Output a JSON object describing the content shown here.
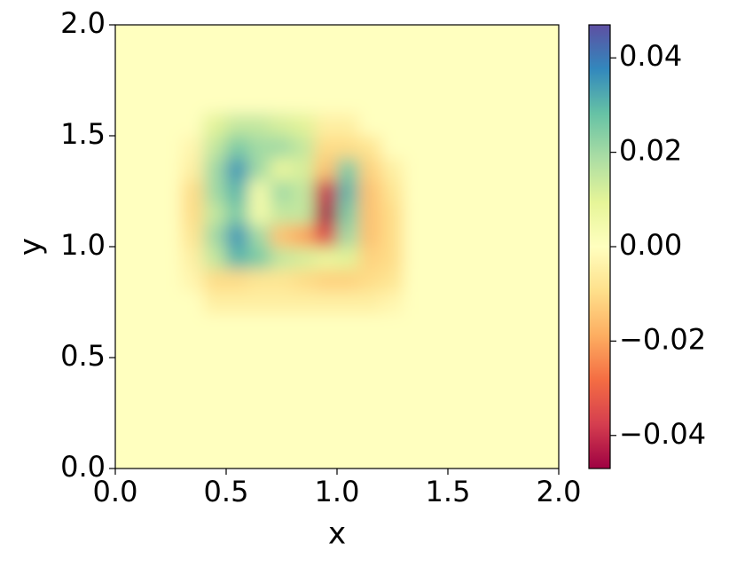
{
  "chart_data": {
    "type": "heatmap",
    "xlabel": "x",
    "ylabel": "y",
    "xlim": [
      0,
      2
    ],
    "ylim": [
      0,
      2
    ],
    "xticks": [
      {
        "value": 0,
        "label": "0.0"
      },
      {
        "value": 0.5,
        "label": "0.5"
      },
      {
        "value": 1,
        "label": "1.0"
      },
      {
        "value": 1.5,
        "label": "1.5"
      },
      {
        "value": 2,
        "label": "2.0"
      }
    ],
    "yticks": [
      {
        "value": 0,
        "label": "0.0"
      },
      {
        "value": 0.5,
        "label": "0.5"
      },
      {
        "value": 1,
        "label": "1.0"
      },
      {
        "value": 1.5,
        "label": "1.5"
      },
      {
        "value": 2,
        "label": "2.0"
      }
    ],
    "colormap": "Spectral",
    "clim": [
      -0.047,
      0.047
    ],
    "cticks": [
      {
        "value": -0.04,
        "label": "−0.04"
      },
      {
        "value": -0.02,
        "label": "−0.02"
      },
      {
        "value": 0,
        "label": "0.00"
      },
      0.02,
      0.04
    ],
    "x": [
      0.05,
      0.15,
      0.25,
      0.35,
      0.45,
      0.55,
      0.65,
      0.75,
      0.85,
      0.95,
      1.05,
      1.15,
      1.25,
      1.35,
      1.45,
      1.55,
      1.65,
      1.75,
      1.85,
      1.95
    ],
    "y": [
      0.05,
      0.15,
      0.25,
      0.35,
      0.45,
      0.55,
      0.65,
      0.75,
      0.85,
      0.95,
      1.05,
      1.15,
      1.25,
      1.35,
      1.45,
      1.55,
      1.65,
      1.75,
      1.85,
      1.95
    ],
    "z": [
      [
        0,
        0,
        0,
        0,
        0,
        0,
        0,
        0,
        0,
        0,
        0,
        0,
        0,
        0,
        0,
        0,
        0,
        0,
        0,
        0
      ],
      [
        0,
        0,
        0,
        0,
        0,
        0,
        0,
        0,
        0,
        0,
        0,
        0,
        0,
        0,
        0,
        0,
        0,
        0,
        0,
        0
      ],
      [
        0,
        0,
        0,
        0,
        0,
        0,
        0,
        0,
        0,
        0,
        0,
        0,
        0,
        0,
        0,
        0,
        0,
        0,
        0,
        0
      ],
      [
        0,
        0,
        0,
        0,
        0,
        0,
        0,
        0,
        0,
        0,
        0,
        0,
        0,
        0,
        0,
        0,
        0,
        0,
        0,
        0
      ],
      [
        0,
        0,
        0,
        0,
        0,
        0,
        0,
        0,
        0,
        0,
        0,
        0,
        0,
        0,
        0,
        0,
        0,
        0,
        0,
        0
      ],
      [
        0,
        0,
        0,
        0,
        0,
        0,
        0,
        0,
        0,
        0,
        0,
        0,
        0,
        0,
        0,
        0,
        0,
        0,
        0,
        0
      ],
      [
        0,
        0,
        0,
        0,
        0,
        0,
        0,
        0,
        0,
        0,
        0,
        0,
        0,
        0,
        0,
        0,
        0,
        0,
        0,
        0
      ],
      [
        0,
        0,
        0,
        0,
        -0.005,
        -0.005,
        -0.005,
        -0.005,
        -0.005,
        -0.005,
        -0.005,
        -0.005,
        -0.003,
        0,
        0,
        0,
        0,
        0,
        0,
        0
      ],
      [
        0,
        0,
        0,
        -0.003,
        -0.01,
        -0.01,
        -0.008,
        -0.008,
        -0.01,
        -0.012,
        -0.012,
        -0.01,
        -0.008,
        0,
        0,
        0,
        0,
        0,
        0,
        0
      ],
      [
        0,
        0,
        0,
        -0.005,
        0.015,
        0.03,
        0.025,
        0.015,
        0.012,
        0.008,
        0.01,
        -0.012,
        -0.01,
        0,
        0,
        0,
        0,
        0,
        0,
        0
      ],
      [
        0,
        0,
        0,
        -0.008,
        0.02,
        0.035,
        0.02,
        -0.015,
        -0.02,
        -0.035,
        0.02,
        -0.015,
        -0.01,
        0,
        0,
        0,
        0,
        0,
        0,
        0
      ],
      [
        0,
        0,
        0,
        -0.01,
        0.015,
        0.025,
        0.005,
        0.015,
        0.015,
        -0.045,
        0.025,
        -0.015,
        -0.01,
        0,
        0,
        0,
        0,
        0,
        0,
        0
      ],
      [
        0,
        0,
        0,
        -0.01,
        0.02,
        0.03,
        0.005,
        0.02,
        0.015,
        -0.04,
        0.03,
        -0.015,
        -0.008,
        0,
        0,
        0,
        0,
        0,
        0,
        0
      ],
      [
        0,
        0,
        0,
        -0.005,
        0.02,
        0.035,
        0.02,
        0.008,
        0.012,
        -0.015,
        0.025,
        -0.012,
        -0.005,
        0,
        0,
        0,
        0,
        0,
        0,
        0
      ],
      [
        0,
        0,
        0,
        -0.003,
        0.015,
        0.025,
        0.02,
        0.02,
        0.015,
        -0.01,
        -0.01,
        -0.008,
        0,
        0,
        0,
        0,
        0,
        0,
        0,
        0
      ],
      [
        0,
        0,
        0,
        0,
        0.01,
        0.015,
        0.015,
        0.012,
        0.01,
        -0.005,
        -0.005,
        0,
        0,
        0,
        0,
        0,
        0,
        0,
        0,
        0
      ],
      [
        0,
        0,
        0,
        0,
        0,
        0,
        0,
        0,
        0,
        0,
        0,
        0,
        0,
        0,
        0,
        0,
        0,
        0,
        0,
        0
      ],
      [
        0,
        0,
        0,
        0,
        0,
        0,
        0,
        0,
        0,
        0,
        0,
        0,
        0,
        0,
        0,
        0,
        0,
        0,
        0,
        0
      ],
      [
        0,
        0,
        0,
        0,
        0,
        0,
        0,
        0,
        0,
        0,
        0,
        0,
        0,
        0,
        0,
        0,
        0,
        0,
        0,
        0
      ],
      [
        0,
        0,
        0,
        0,
        0,
        0,
        0,
        0,
        0,
        0,
        0,
        0,
        0,
        0,
        0,
        0,
        0,
        0,
        0,
        0
      ]
    ]
  }
}
